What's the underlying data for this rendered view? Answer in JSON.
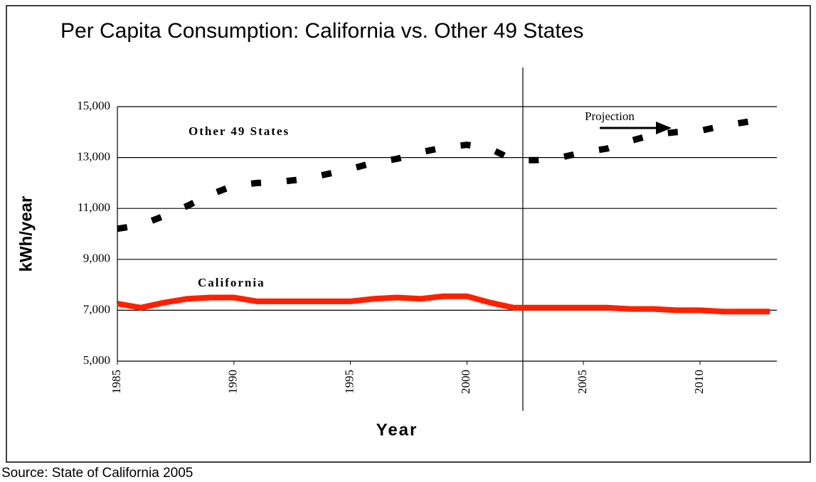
{
  "chart_data": {
    "type": "line",
    "title": "Per Capita Consumption: California vs. Other 49 States",
    "x_label": "Year",
    "y_label": "kWh/year",
    "source": "Source: State of California 2005",
    "annotations": [
      "Other 49 States",
      "California",
      "Projection"
    ],
    "projection_line_x": 2002.4,
    "x": [
      1985,
      1986,
      1987,
      1988,
      1989,
      1990,
      1991,
      1992,
      1993,
      1994,
      1995,
      1996,
      1997,
      1998,
      1999,
      2000,
      2001,
      2002,
      2003,
      2004,
      2005,
      2006,
      2007,
      2008,
      2009,
      2010,
      2011,
      2012,
      2013
    ],
    "series": [
      {
        "name": "Other 49 States",
        "color": "#000000",
        "dashed": true,
        "values": [
          10200,
          10350,
          10700,
          11100,
          11550,
          11900,
          12000,
          12050,
          12150,
          12350,
          12550,
          12800,
          12950,
          13200,
          13400,
          13500,
          13350,
          12900,
          12900,
          13000,
          13200,
          13350,
          13650,
          13900,
          14000,
          14050,
          14250,
          14400,
          14550
        ]
      },
      {
        "name": "California",
        "color": "#ff2000",
        "dashed": false,
        "values": [
          7260,
          7100,
          7300,
          7450,
          7500,
          7500,
          7350,
          7350,
          7350,
          7350,
          7350,
          7450,
          7500,
          7450,
          7550,
          7550,
          7300,
          7100,
          7100,
          7100,
          7100,
          7100,
          7050,
          7050,
          7000,
          7000,
          6950,
          6950,
          6950
        ]
      }
    ],
    "xlim": [
      1985,
      2013.3
    ],
    "xticks": [
      1985,
      1990,
      1995,
      2000,
      2005,
      2010
    ],
    "ylim": [
      5000,
      15000
    ],
    "yticks": [
      {
        "value": 5000,
        "label": "5,000"
      },
      {
        "value": 7000,
        "label": "7,000"
      },
      {
        "value": 9000,
        "label": "9,000"
      },
      {
        "value": 11000,
        "label": "11,000"
      },
      {
        "value": 13000,
        "label": "13,000"
      },
      {
        "value": 15000,
        "label": "15,000"
      }
    ],
    "grid": true
  }
}
